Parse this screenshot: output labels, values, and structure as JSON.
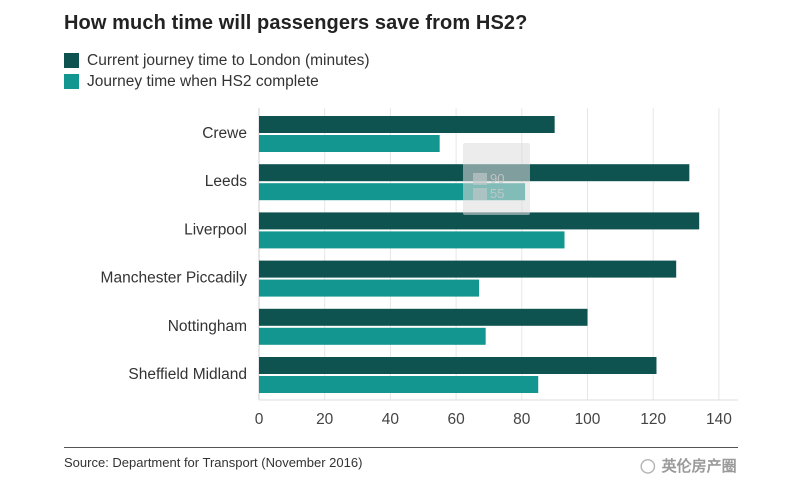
{
  "chart_data": {
    "type": "bar",
    "orientation": "horizontal",
    "title": "How much time will passengers save from HS2?",
    "categories": [
      "Crewe",
      "Leeds",
      "Liverpool",
      "Manchester Piccadily",
      "Nottingham",
      "Sheffield Midland"
    ],
    "series": [
      {
        "name": "Current journey time to London (minutes)",
        "color": "#0f5350",
        "values": [
          90,
          131,
          134,
          127,
          100,
          121
        ]
      },
      {
        "name": "Journey time when HS2 complete",
        "color": "#12968f",
        "values": [
          55,
          81,
          93,
          67,
          69,
          85
        ]
      }
    ],
    "xlabel": "",
    "ylabel": "",
    "xlim": [
      0,
      145
    ],
    "xticks": [
      0,
      20,
      40,
      60,
      80,
      100,
      120,
      140
    ],
    "grid": true,
    "legend_position": "top-left",
    "source": "Source: Department for Transport (November 2016)",
    "tooltip": {
      "category": "Crewe",
      "values": [
        "90",
        "55"
      ]
    }
  },
  "watermark": {
    "text": "英伦房产圈",
    "icon": "wechat-icon"
  }
}
